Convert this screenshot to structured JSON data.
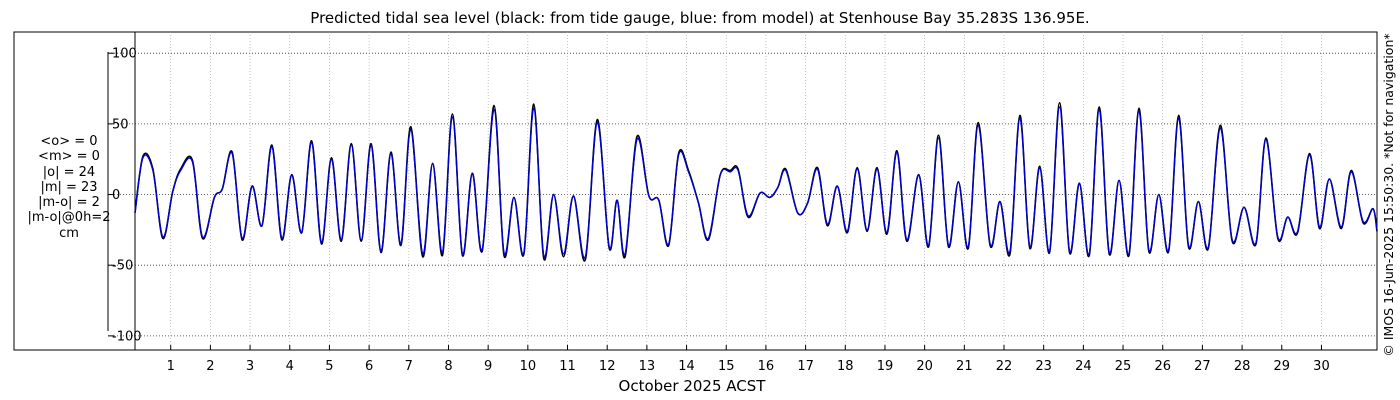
{
  "chart_data": {
    "type": "line",
    "title": "Predicted tidal sea level (black: from tide gauge, blue: from model) at Stenhouse Bay 35.283S 136.95E.",
    "xlabel": "October 2025 ACST",
    "ylabel": "",
    "ylim": [
      -110,
      115
    ],
    "xlim": [
      0.1,
      31.4
    ],
    "grid": true,
    "y_ticks": [
      100,
      50,
      0,
      -50,
      -100
    ],
    "y_tick_labels": [
      "100",
      "50",
      "0",
      "-50",
      "-100"
    ],
    "x_ticks": [
      1,
      2,
      3,
      4,
      5,
      6,
      7,
      8,
      9,
      10,
      11,
      12,
      13,
      14,
      15,
      16,
      17,
      18,
      19,
      20,
      21,
      22,
      23,
      24,
      25,
      26,
      27,
      28,
      29,
      30
    ],
    "x_tick_labels": [
      "1",
      "2",
      "3",
      "4",
      "5",
      "6",
      "7",
      "8",
      "9",
      "10",
      "11",
      "12",
      "13",
      "14",
      "15",
      "16",
      "17",
      "18",
      "19",
      "20",
      "21",
      "22",
      "23",
      "24",
      "25",
      "26",
      "27",
      "28",
      "29",
      "30"
    ],
    "series": [
      {
        "name": "black: from tide gauge",
        "color": "#000000",
        "x": [
          0.1,
          0.3,
          0.55,
          0.8,
          1.05,
          1.25,
          1.55,
          1.8,
          2.1,
          2.3,
          2.55,
          2.8,
          3.05,
          3.3,
          3.55,
          3.8,
          4.05,
          4.3,
          4.55,
          4.8,
          5.05,
          5.3,
          5.55,
          5.8,
          6.05,
          6.3,
          6.55,
          6.8,
          7.05,
          7.35,
          7.6,
          7.85,
          8.1,
          8.35,
          8.6,
          8.85,
          9.15,
          9.4,
          9.65,
          9.9,
          10.15,
          10.4,
          10.65,
          10.9,
          11.15,
          11.45,
          11.75,
          12.05,
          12.25,
          12.45,
          12.75,
          13.05,
          13.3,
          13.55,
          13.8,
          14.05,
          14.3,
          14.55,
          14.85,
          15.1,
          15.3,
          15.55,
          15.85,
          16.1,
          16.3,
          16.5,
          16.8,
          17.05,
          17.3,
          17.55,
          17.8,
          18.05,
          18.3,
          18.55,
          18.8,
          19.05,
          19.3,
          19.55,
          19.85,
          20.1,
          20.35,
          20.6,
          20.85,
          21.1,
          21.35,
          21.65,
          21.9,
          22.15,
          22.4,
          22.65,
          22.9,
          23.15,
          23.4,
          23.65,
          23.9,
          24.15,
          24.4,
          24.65,
          24.9,
          25.15,
          25.4,
          25.65,
          25.9,
          26.15,
          26.4,
          26.65,
          26.9,
          27.15,
          27.45,
          27.75,
          28.05,
          28.35,
          28.6,
          28.9,
          29.15,
          29.4,
          29.7,
          29.95,
          30.2,
          30.5,
          30.75,
          31.05,
          31.3,
          31.4
        ],
        "values": [
          -13,
          27,
          18,
          -31,
          2,
          18,
          24,
          -31,
          -2,
          4,
          30,
          -32,
          6,
          -22,
          35,
          -32,
          14,
          -27,
          38,
          -35,
          26,
          -33,
          36,
          -33,
          36,
          -41,
          30,
          -36,
          48,
          -44,
          22,
          -43,
          57,
          -43,
          15,
          -40,
          63,
          -43,
          -2,
          -42,
          64,
          -45,
          0,
          -44,
          -1,
          -46,
          53,
          -38,
          -4,
          -44,
          41,
          -1,
          -4,
          -36,
          29,
          17,
          -6,
          -32,
          14,
          17,
          18,
          -16,
          1,
          -2,
          5,
          18,
          -13,
          -6,
          19,
          -22,
          6,
          -27,
          19,
          -26,
          19,
          -28,
          31,
          -33,
          14,
          -37,
          42,
          -37,
          9,
          -38,
          51,
          -36,
          -5,
          -42,
          56,
          -38,
          20,
          -41,
          65,
          -41,
          8,
          -43,
          62,
          -42,
          10,
          -43,
          61,
          -40,
          0,
          -40,
          56,
          -37,
          -5,
          -38,
          49,
          -33,
          -9,
          -35,
          40,
          -31,
          -16,
          -27,
          29,
          -24,
          11,
          -24,
          17,
          -20,
          -10,
          -26
        ]
      },
      {
        "name": "blue: from model",
        "color": "#0000cc",
        "x": [
          0.1,
          0.3,
          0.55,
          0.8,
          1.05,
          1.25,
          1.55,
          1.8,
          2.1,
          2.3,
          2.55,
          2.8,
          3.05,
          3.3,
          3.55,
          3.8,
          4.05,
          4.3,
          4.55,
          4.8,
          5.05,
          5.3,
          5.55,
          5.8,
          6.05,
          6.3,
          6.55,
          6.8,
          7.05,
          7.35,
          7.6,
          7.85,
          8.1,
          8.35,
          8.6,
          8.85,
          9.15,
          9.4,
          9.65,
          9.9,
          10.15,
          10.4,
          10.65,
          10.9,
          11.15,
          11.45,
          11.75,
          12.05,
          12.25,
          12.45,
          12.75,
          13.05,
          13.3,
          13.55,
          13.8,
          14.05,
          14.3,
          14.55,
          14.85,
          15.1,
          15.3,
          15.55,
          15.85,
          16.1,
          16.3,
          16.5,
          16.8,
          17.05,
          17.3,
          17.55,
          17.8,
          18.05,
          18.3,
          18.55,
          18.8,
          19.05,
          19.3,
          19.55,
          19.85,
          20.1,
          20.35,
          20.6,
          20.85,
          21.1,
          21.35,
          21.65,
          21.9,
          22.15,
          22.4,
          22.65,
          22.9,
          23.15,
          23.4,
          23.65,
          23.9,
          24.15,
          24.4,
          24.65,
          24.9,
          25.15,
          25.4,
          25.65,
          25.9,
          26.15,
          26.4,
          26.65,
          26.9,
          27.15,
          27.45,
          27.75,
          28.05,
          28.35,
          28.6,
          28.9,
          29.15,
          29.4,
          29.7,
          29.95,
          30.2,
          30.5,
          30.75,
          31.05,
          31.3,
          31.4
        ],
        "values": [
          -13,
          26,
          17,
          -30,
          2,
          17,
          23,
          -30,
          -2,
          4,
          29,
          -31,
          6,
          -22,
          34,
          -31,
          14,
          -27,
          37,
          -34,
          25,
          -32,
          35,
          -32,
          35,
          -40,
          29,
          -35,
          46,
          -42,
          22,
          -41,
          55,
          -42,
          15,
          -39,
          60,
          -41,
          -2,
          -41,
          61,
          -43,
          0,
          -42,
          -1,
          -44,
          51,
          -37,
          -4,
          -42,
          39,
          -1,
          -4,
          -35,
          28,
          16,
          -6,
          -31,
          14,
          16,
          17,
          -15,
          1,
          -2,
          5,
          17,
          -13,
          -6,
          18,
          -21,
          6,
          -26,
          18,
          -25,
          18,
          -27,
          30,
          -32,
          14,
          -36,
          40,
          -36,
          9,
          -37,
          49,
          -35,
          -5,
          -40,
          54,
          -37,
          19,
          -40,
          62,
          -40,
          8,
          -42,
          60,
          -41,
          10,
          -42,
          59,
          -39,
          0,
          -39,
          54,
          -36,
          -5,
          -37,
          47,
          -32,
          -9,
          -34,
          39,
          -30,
          -16,
          -26,
          28,
          -23,
          11,
          -23,
          16,
          -19,
          -10,
          -25
        ]
      }
    ],
    "annotations": [
      "<o> = 0",
      "<m> = 0",
      "|o| = 24",
      "|m| = 23",
      "|m-o| = 2",
      "|m-o|@0h=2",
      "cm"
    ],
    "credit": "© IMOS 16-Jun-2025 15:50:30. *Not for navigation*"
  }
}
